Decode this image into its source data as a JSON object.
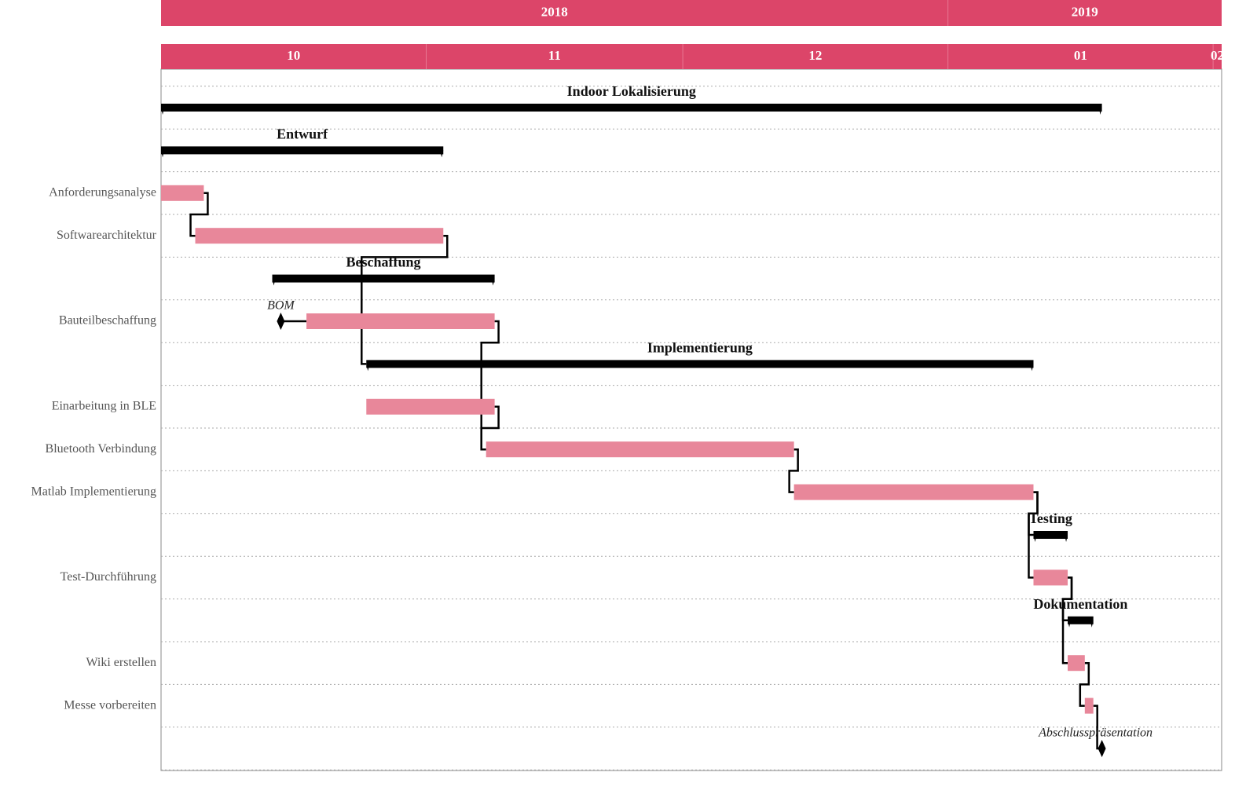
{
  "chart_data": {
    "type": "gantt",
    "xlim": [
      "2018-10-01",
      "2019-02-02"
    ],
    "header_color": "#dc4569",
    "task_color": "#e8879a",
    "group_color": "#000000",
    "years": [
      {
        "label": "2018",
        "start": "2018-10-01"
      },
      {
        "label": "2019",
        "start": "2019-01-01"
      }
    ],
    "months": [
      {
        "label": "10",
        "start": "2018-10-01"
      },
      {
        "label": "11",
        "start": "2018-11-01"
      },
      {
        "label": "12",
        "start": "2018-12-01"
      },
      {
        "label": "01",
        "start": "2019-01-01"
      },
      {
        "label": "02",
        "start": "2019-02-01"
      }
    ],
    "tasks": [
      {
        "kind": "group",
        "label": "Indoor Lokalisierung",
        "start": "2018-10-01",
        "end": "2019-01-18"
      },
      {
        "kind": "group",
        "label": "Entwurf",
        "start": "2018-10-01",
        "end": "2018-11-02"
      },
      {
        "kind": "task",
        "label": "Anforderungsanalyse",
        "start": "2018-10-01",
        "end": "2018-10-05"
      },
      {
        "kind": "task",
        "label": "Softwarearchitektur",
        "start": "2018-10-05",
        "end": "2018-11-02"
      },
      {
        "kind": "group",
        "label": "Beschaffung",
        "start": "2018-10-14",
        "end": "2018-11-08"
      },
      {
        "kind": "task",
        "label": "Bauteilbeschaffung",
        "start": "2018-10-18",
        "end": "2018-11-08",
        "milestone": {
          "label": "BOM",
          "date": "2018-10-15"
        }
      },
      {
        "kind": "group",
        "label": "Implementierung",
        "start": "2018-10-25",
        "end": "2019-01-10"
      },
      {
        "kind": "task",
        "label": "Einarbeitung in BLE",
        "start": "2018-10-25",
        "end": "2018-11-08"
      },
      {
        "kind": "task",
        "label": "Bluetooth Verbindung",
        "start": "2018-11-08",
        "end": "2018-12-13"
      },
      {
        "kind": "task",
        "label": "Matlab Implementierung",
        "start": "2018-12-14",
        "end": "2019-01-10"
      },
      {
        "kind": "group",
        "label": "Testing",
        "start": "2019-01-11",
        "end": "2019-01-14"
      },
      {
        "kind": "task",
        "label": "Test-Durchführung",
        "start": "2019-01-11",
        "end": "2019-01-14"
      },
      {
        "kind": "group",
        "label": "Dokumentation",
        "start": "2019-01-15",
        "end": "2019-01-17"
      },
      {
        "kind": "task",
        "label": "Wiki erstellen",
        "start": "2019-01-15",
        "end": "2019-01-16"
      },
      {
        "kind": "task",
        "label": "Messe vorbereiten",
        "start": "2019-01-17",
        "end": "2019-01-17"
      },
      {
        "kind": "milestone",
        "label": "Abschlusspräsentation",
        "date": "2019-01-19"
      }
    ],
    "links": [
      {
        "from": 2,
        "to": 3
      },
      {
        "from": 3,
        "to": 6
      },
      {
        "from": 5,
        "to": 8
      },
      {
        "from": 7,
        "to": 8
      },
      {
        "from": 8,
        "to": 9
      },
      {
        "from": 9,
        "to": 10
      },
      {
        "from": 9,
        "to": 11
      },
      {
        "from": 11,
        "to": 12
      },
      {
        "from": 11,
        "to": 13
      },
      {
        "from": 13,
        "to": 14
      },
      {
        "from": 14,
        "to": 15
      }
    ]
  }
}
